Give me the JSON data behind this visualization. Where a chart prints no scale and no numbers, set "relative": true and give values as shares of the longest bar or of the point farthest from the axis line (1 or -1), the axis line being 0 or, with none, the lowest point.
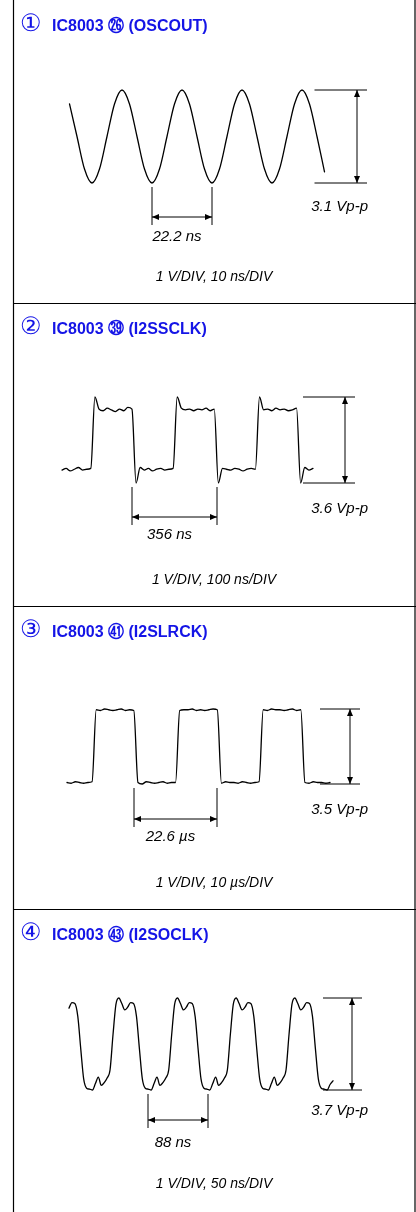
{
  "chart_data": [
    {
      "type": "line",
      "relative": true,
      "title": "① IC8003 ㉖ (OSCOUT)",
      "categories": [
        null,
        null,
        null,
        null,
        null,
        null,
        null,
        null,
        null,
        null,
        null,
        null,
        null,
        null,
        null,
        null,
        null,
        null,
        null,
        null,
        null,
        null,
        null,
        null,
        null,
        null,
        null,
        null,
        null,
        null,
        null,
        null,
        null,
        null,
        null
      ],
      "series": [
        {
          "color": "#000000",
          "values": [
            0.85,
            0.5,
            0.15,
            0,
            0.15,
            0.5,
            0.85,
            1,
            0.85,
            0.5,
            0.15,
            0,
            0.15,
            0.5,
            0.85,
            1,
            0.85,
            0.5,
            0.15,
            0,
            0.15,
            0.5,
            0.85,
            1,
            0.85,
            0.5,
            0.15,
            0,
            0.15,
            0.5,
            0.85,
            1,
            0.85,
            0.5,
            0.12
          ]
        }
      ],
      "annotations": [
        "22.2 ns",
        "3.1 Vp-p",
        "1 V/DIV, 10 ns/DIV"
      ]
    },
    {
      "type": "line",
      "relative": true,
      "title": "② IC8003 ㊴ (I2SSCLK)",
      "categories": [
        null,
        null,
        null,
        null,
        null,
        null,
        null,
        null,
        null,
        null,
        null,
        null,
        null,
        null,
        null,
        null,
        null,
        null,
        null,
        null,
        null,
        null,
        null,
        null,
        null,
        null,
        null,
        null,
        null,
        null,
        null,
        null,
        null,
        null,
        null,
        null,
        null,
        null,
        null,
        null,
        null,
        null,
        null,
        null,
        null,
        null,
        null,
        null,
        null,
        null,
        null,
        null,
        null,
        null,
        null,
        null,
        null,
        null,
        null,
        null,
        null,
        null
      ],
      "series": [
        {
          "color": "#000000",
          "values": [
            0.15,
            0.17,
            0.14,
            0.16,
            0.18,
            0.15,
            0.16,
            0.17,
            1.0,
            0.86,
            0.84,
            0.87,
            0.85,
            0.83,
            0.86,
            0.84,
            0.88,
            0.86,
            0.0,
            0.18,
            0.15,
            0.17,
            0.14,
            0.16,
            0.17,
            0.15,
            0.16,
            0.17,
            1.0,
            0.87,
            0.85,
            0.86,
            0.84,
            0.86,
            0.85,
            0.87,
            0.84,
            0.86,
            0.0,
            0.17,
            0.16,
            0.15,
            0.17,
            0.16,
            0.14,
            0.16,
            0.17,
            0.16,
            1.0,
            0.85,
            0.86,
            0.84,
            0.87,
            0.85,
            0.86,
            0.84,
            0.85,
            0.87,
            0.0,
            0.18,
            0.15,
            0.17
          ]
        }
      ],
      "annotations": [
        "356 ns",
        "3.6 Vp-p",
        "1 V/DIV, 100 ns/DIV"
      ]
    },
    {
      "type": "line",
      "relative": true,
      "title": "③ IC8003 ㊶ (I2SLRCK)",
      "categories": [
        null,
        null,
        null,
        null,
        null,
        null,
        null,
        null,
        null,
        null,
        null,
        null,
        null,
        null,
        null,
        null,
        null,
        null,
        null,
        null,
        null,
        null,
        null,
        null,
        null,
        null,
        null,
        null,
        null,
        null,
        null,
        null,
        null,
        null,
        null,
        null,
        null,
        null,
        null,
        null,
        null,
        null,
        null,
        null,
        null,
        null,
        null,
        null,
        null,
        null,
        null,
        null,
        null,
        null,
        null,
        null,
        null,
        null,
        null,
        null,
        null,
        null,
        null,
        null
      ],
      "series": [
        {
          "color": "#000000",
          "values": [
            0.02,
            0.01,
            0.03,
            0.02,
            0.01,
            0.02,
            0.03,
            0.99,
            0.98,
            1.0,
            0.99,
            0.98,
            0.99,
            1.0,
            0.98,
            0.99,
            0.98,
            0.02,
            0.0,
            0.03,
            0.02,
            0.01,
            0.02,
            0.03,
            0.01,
            0.02,
            0.02,
            0.98,
            0.99,
            0.99,
            1.0,
            0.98,
            0.99,
            0.98,
            0.99,
            1.0,
            0.99,
            0.01,
            0.03,
            0.02,
            0.02,
            0.01,
            0.03,
            0.02,
            0.01,
            0.02,
            0.03,
            0.99,
            0.98,
            1.0,
            0.99,
            0.99,
            0.98,
            0.99,
            1.0,
            0.98,
            0.99,
            0.02,
            0.01,
            0.03,
            0.02,
            0.02,
            0.01,
            0.02
          ]
        }
      ],
      "annotations": [
        "22.6 µs",
        "3.5 Vp-p",
        "1 V/DIV, 10 µs/DIV"
      ]
    },
    {
      "type": "line",
      "relative": true,
      "title": "④ IC8003 ㊸ (I2SOCLK)",
      "categories": [
        null,
        null,
        null,
        null,
        null,
        null,
        null,
        null,
        null,
        null,
        null,
        null,
        null,
        null,
        null,
        null,
        null,
        null,
        null,
        null,
        null,
        null,
        null,
        null,
        null,
        null,
        null,
        null,
        null,
        null,
        null,
        null,
        null,
        null,
        null,
        null,
        null,
        null,
        null,
        null,
        null,
        null,
        null,
        null,
        null,
        null,
        null,
        null,
        null,
        null,
        null,
        null,
        null,
        null,
        null,
        null,
        null,
        null,
        null,
        null,
        null,
        null,
        null,
        null,
        null,
        null,
        null,
        null,
        null,
        null,
        null,
        null,
        null,
        null,
        null,
        null,
        null,
        null,
        null,
        null,
        null,
        null,
        null,
        null,
        null,
        null,
        null,
        null,
        null,
        null,
        null
      ],
      "series": [
        {
          "color": "#000000",
          "values": [
            0.89,
            0.95,
            0.94,
            0.8,
            0.45,
            0.12,
            0.02,
            0.01,
            0,
            0.07,
            0.14,
            0.05,
            0.08,
            0.13,
            0.22,
            0.6,
            0.93,
            1.0,
            0.94,
            0.87,
            0.9,
            0.95,
            0.94,
            0.8,
            0.45,
            0.12,
            0.02,
            0.01,
            0,
            0.07,
            0.14,
            0.05,
            0.08,
            0.13,
            0.22,
            0.6,
            0.93,
            1.0,
            0.94,
            0.87,
            0.9,
            0.95,
            0.94,
            0.8,
            0.45,
            0.12,
            0.02,
            0.01,
            0,
            0.07,
            0.14,
            0.05,
            0.08,
            0.13,
            0.22,
            0.6,
            0.93,
            1.0,
            0.94,
            0.87,
            0.9,
            0.95,
            0.94,
            0.8,
            0.45,
            0.12,
            0.02,
            0.01,
            0,
            0.07,
            0.14,
            0.05,
            0.08,
            0.13,
            0.22,
            0.6,
            0.93,
            1.0,
            0.94,
            0.87,
            0.9,
            0.95,
            0.94,
            0.8,
            0.45,
            0.12,
            0.02,
            0.01,
            0.0,
            0.06,
            0.1
          ]
        }
      ],
      "annotations": [
        "88 ns",
        "3.7 Vp-p",
        "1 V/DIV, 50 ns/DIV"
      ]
    }
  ]
}
